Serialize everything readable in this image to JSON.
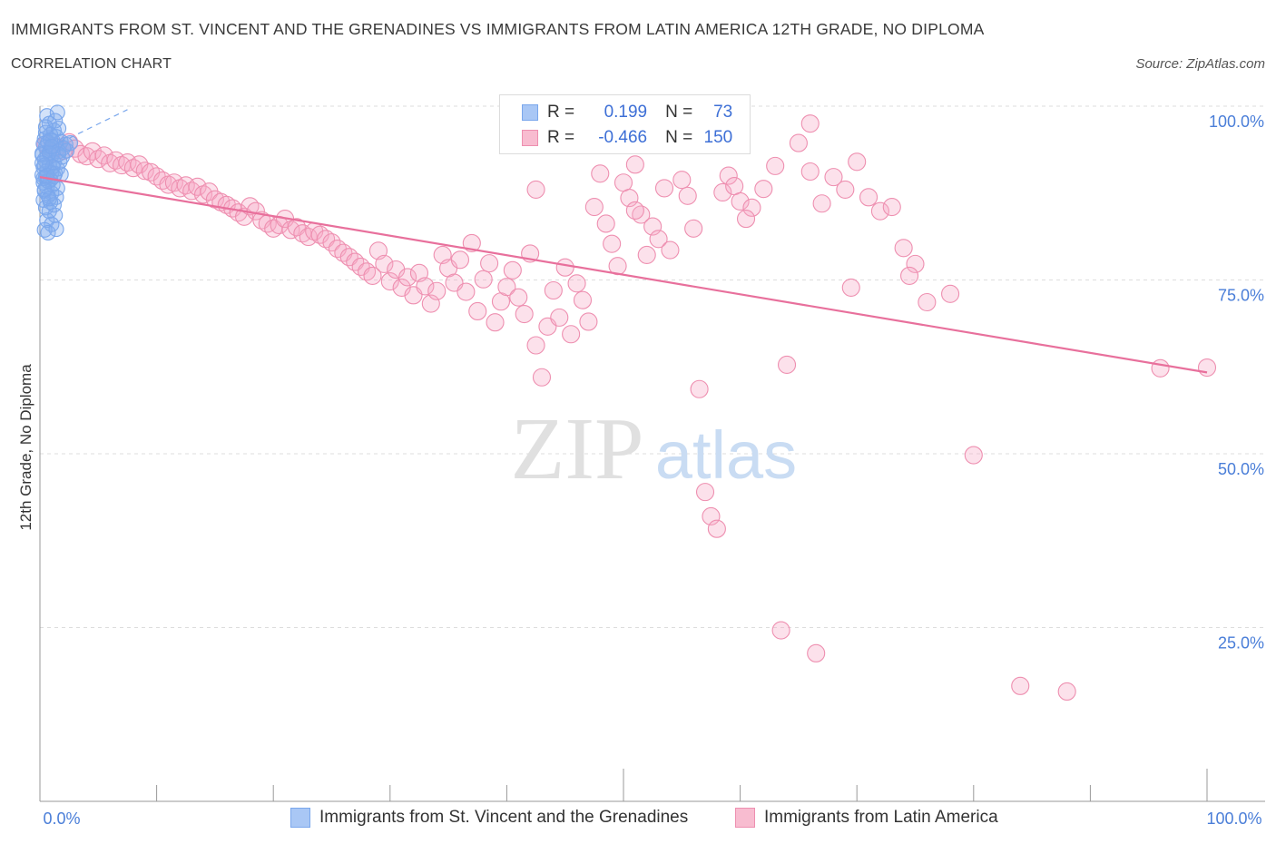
{
  "title": "IMMIGRANTS FROM ST. VINCENT AND THE GRENADINES VS IMMIGRANTS FROM LATIN AMERICA 12TH GRADE, NO DIPLOMA",
  "subtitle": "CORRELATION CHART",
  "source": "Source: ZipAtlas.com",
  "watermark": {
    "zip": "ZIP",
    "atlas": "atlas"
  },
  "legend": {
    "r_label": "R =",
    "n_label": "N =",
    "series1": {
      "r": "0.199",
      "n": "73",
      "color": "#a9c7f5",
      "border": "#7aa7ec"
    },
    "series2": {
      "r": "-0.466",
      "n": "150",
      "color": "#f8bcd0",
      "border": "#ee8fb0"
    }
  },
  "bottom_legend": {
    "series1": "Immigrants from St. Vincent and the Grenadines",
    "series2": "Immigrants from Latin America"
  },
  "chart_data": {
    "type": "scatter",
    "title": "IMMIGRANTS FROM ST. VINCENT AND THE GRENADINES VS IMMIGRANTS FROM LATIN AMERICA 12TH GRADE, NO DIPLOMA",
    "subtitle": "CORRELATION CHART",
    "xlabel": "",
    "ylabel": "12th Grade, No Diploma",
    "xlim": [
      0,
      100
    ],
    "ylim": [
      0,
      100
    ],
    "x_tick_labels": [
      "0.0%",
      "100.0%"
    ],
    "y_tick_labels": [
      "100.0%",
      "75.0%",
      "50.0%",
      "25.0%"
    ],
    "y_ticks": [
      100,
      75,
      50,
      25
    ],
    "grid": true,
    "legend_position": "top-center",
    "series": [
      {
        "name": "Immigrants from St. Vincent and the Grenadines",
        "color": "#7aa7ec",
        "r": 0.199,
        "n": 73,
        "trend": {
          "x": [
            0.2,
            7.5
          ],
          "y": [
            93.5,
            99.5
          ],
          "style": "dashed"
        },
        "points": [
          [
            0.6,
            98.6
          ],
          [
            1.5,
            99.1
          ],
          [
            0.8,
            97.5
          ],
          [
            1.2,
            96.5
          ],
          [
            1.6,
            96.8
          ],
          [
            0.5,
            96.2
          ],
          [
            0.9,
            95.9
          ],
          [
            1.4,
            95.6
          ],
          [
            0.4,
            95.3
          ],
          [
            1.1,
            95.0
          ],
          [
            0.7,
            94.8
          ],
          [
            1.8,
            94.9
          ],
          [
            0.3,
            94.6
          ],
          [
            1.3,
            94.3
          ],
          [
            2.2,
            94.5
          ],
          [
            0.5,
            94.1
          ],
          [
            0.9,
            93.8
          ],
          [
            1.6,
            93.5
          ],
          [
            0.2,
            93.2
          ],
          [
            1.0,
            92.9
          ],
          [
            0.6,
            92.6
          ],
          [
            1.9,
            92.7
          ],
          [
            0.4,
            92.3
          ],
          [
            1.2,
            91.9
          ],
          [
            0.8,
            91.6
          ],
          [
            0.3,
            91.2
          ],
          [
            1.5,
            91.0
          ],
          [
            0.6,
            90.7
          ],
          [
            1.0,
            90.4
          ],
          [
            0.2,
            90.1
          ],
          [
            1.3,
            90.3
          ],
          [
            1.8,
            90.2
          ],
          [
            0.5,
            89.8
          ],
          [
            0.9,
            89.4
          ],
          [
            0.3,
            89.0
          ],
          [
            1.1,
            88.7
          ],
          [
            0.6,
            88.4
          ],
          [
            1.5,
            88.2
          ],
          [
            0.4,
            87.8
          ],
          [
            1.0,
            87.5
          ],
          [
            0.7,
            87.1
          ],
          [
            1.4,
            86.9
          ],
          [
            0.3,
            86.5
          ],
          [
            0.9,
            86.2
          ],
          [
            1.2,
            85.8
          ],
          [
            0.5,
            85.4
          ],
          [
            0.8,
            84.9
          ],
          [
            1.3,
            84.3
          ],
          [
            0.6,
            83.6
          ],
          [
            1.0,
            83.0
          ],
          [
            0.4,
            82.2
          ],
          [
            1.4,
            82.3
          ],
          [
            0.7,
            81.8
          ],
          [
            2.0,
            94.0
          ],
          [
            2.6,
            94.7
          ],
          [
            0.2,
            93.0
          ],
          [
            0.8,
            93.3
          ],
          [
            1.7,
            92.0
          ],
          [
            0.4,
            91.5
          ],
          [
            1.1,
            91.3
          ],
          [
            0.3,
            89.6
          ],
          [
            0.7,
            89.2
          ],
          [
            1.6,
            93.1
          ],
          [
            2.3,
            93.6
          ],
          [
            0.9,
            95.2
          ],
          [
            0.5,
            97.0
          ],
          [
            1.3,
            97.9
          ],
          [
            0.2,
            91.8
          ],
          [
            1.0,
            94.2
          ],
          [
            0.6,
            90.0
          ],
          [
            1.2,
            89.9
          ],
          [
            0.4,
            88.0
          ],
          [
            0.8,
            86.7
          ]
        ]
      },
      {
        "name": "Immigrants from Latin America",
        "color": "#ee8fb0",
        "r": -0.466,
        "n": 150,
        "trend": {
          "x": [
            0.0,
            100.0
          ],
          "y": [
            89.8,
            61.7
          ],
          "style": "solid"
        },
        "points": [
          [
            0.5,
            94.5
          ],
          [
            1.0,
            93.2
          ],
          [
            1.5,
            94.1
          ],
          [
            2.0,
            93.6
          ],
          [
            2.5,
            94.8
          ],
          [
            3.0,
            93.9
          ],
          [
            3.5,
            93.1
          ],
          [
            4.0,
            92.8
          ],
          [
            4.5,
            93.5
          ],
          [
            5.0,
            92.4
          ],
          [
            5.5,
            92.9
          ],
          [
            6.0,
            91.8
          ],
          [
            6.5,
            92.2
          ],
          [
            7.0,
            91.5
          ],
          [
            7.5,
            91.9
          ],
          [
            8.0,
            91.1
          ],
          [
            8.5,
            91.6
          ],
          [
            9.0,
            90.7
          ],
          [
            9.5,
            90.5
          ],
          [
            10.0,
            89.9
          ],
          [
            10.5,
            89.3
          ],
          [
            11.0,
            88.7
          ],
          [
            11.5,
            89.0
          ],
          [
            12.0,
            88.2
          ],
          [
            12.5,
            88.6
          ],
          [
            13.0,
            87.8
          ],
          [
            13.5,
            88.4
          ],
          [
            14.0,
            87.3
          ],
          [
            14.5,
            87.7
          ],
          [
            15.0,
            86.6
          ],
          [
            15.5,
            86.2
          ],
          [
            16.0,
            85.8
          ],
          [
            16.5,
            85.3
          ],
          [
            17.0,
            84.7
          ],
          [
            17.5,
            84.1
          ],
          [
            18.0,
            85.6
          ],
          [
            18.5,
            84.9
          ],
          [
            19.0,
            83.6
          ],
          [
            19.5,
            83.1
          ],
          [
            20.0,
            82.4
          ],
          [
            20.5,
            82.9
          ],
          [
            21.0,
            83.8
          ],
          [
            21.5,
            82.2
          ],
          [
            22.0,
            82.6
          ],
          [
            22.5,
            81.7
          ],
          [
            23.0,
            81.2
          ],
          [
            23.5,
            82.0
          ],
          [
            24.0,
            81.5
          ],
          [
            24.5,
            80.9
          ],
          [
            25.0,
            80.4
          ],
          [
            25.5,
            79.5
          ],
          [
            26.0,
            78.9
          ],
          [
            26.5,
            78.3
          ],
          [
            27.0,
            77.6
          ],
          [
            27.5,
            76.9
          ],
          [
            28.0,
            76.2
          ],
          [
            28.5,
            75.6
          ],
          [
            29.0,
            79.2
          ],
          [
            29.5,
            77.3
          ],
          [
            30.0,
            74.8
          ],
          [
            30.5,
            76.5
          ],
          [
            31.0,
            73.9
          ],
          [
            31.5,
            75.4
          ],
          [
            32.0,
            72.8
          ],
          [
            32.5,
            76.0
          ],
          [
            33.0,
            74.1
          ],
          [
            33.5,
            71.6
          ],
          [
            34.0,
            73.4
          ],
          [
            34.5,
            78.6
          ],
          [
            35.0,
            76.7
          ],
          [
            35.5,
            74.6
          ],
          [
            36.0,
            77.9
          ],
          [
            36.5,
            73.3
          ],
          [
            37.0,
            80.3
          ],
          [
            37.5,
            70.5
          ],
          [
            38.0,
            75.1
          ],
          [
            38.5,
            77.4
          ],
          [
            39.0,
            68.9
          ],
          [
            39.5,
            71.9
          ],
          [
            40.0,
            74.0
          ],
          [
            40.5,
            76.4
          ],
          [
            41.0,
            72.5
          ],
          [
            41.5,
            70.1
          ],
          [
            42.0,
            78.8
          ],
          [
            42.5,
            65.6
          ],
          [
            43.0,
            61.0
          ],
          [
            43.5,
            68.3
          ],
          [
            44.0,
            73.5
          ],
          [
            44.5,
            69.6
          ],
          [
            45.0,
            76.8
          ],
          [
            45.5,
            67.2
          ],
          [
            46.0,
            74.5
          ],
          [
            46.5,
            72.1
          ],
          [
            47.0,
            69.0
          ],
          [
            47.5,
            85.5
          ],
          [
            48.0,
            90.3
          ],
          [
            48.5,
            83.1
          ],
          [
            49.0,
            80.2
          ],
          [
            49.5,
            77.0
          ],
          [
            50.0,
            89.0
          ],
          [
            50.5,
            86.8
          ],
          [
            51.0,
            91.6
          ],
          [
            51.5,
            84.4
          ],
          [
            52.0,
            78.6
          ],
          [
            52.5,
            82.7
          ],
          [
            53.0,
            80.9
          ],
          [
            53.5,
            88.2
          ],
          [
            54.0,
            79.3
          ],
          [
            54.5,
            95.5
          ],
          [
            55.0,
            89.4
          ],
          [
            55.5,
            87.1
          ],
          [
            56.0,
            82.4
          ],
          [
            56.5,
            59.3
          ],
          [
            57.0,
            44.5
          ],
          [
            57.5,
            41.0
          ],
          [
            58.0,
            39.2
          ],
          [
            58.5,
            87.6
          ],
          [
            59.0,
            90.0
          ],
          [
            59.5,
            88.5
          ],
          [
            60.0,
            86.3
          ],
          [
            61.0,
            85.4
          ],
          [
            62.0,
            88.1
          ],
          [
            63.0,
            91.4
          ],
          [
            64.0,
            62.8
          ],
          [
            65.0,
            94.7
          ],
          [
            66.0,
            90.6
          ],
          [
            67.0,
            86.0
          ],
          [
            68.0,
            89.8
          ],
          [
            69.0,
            88.0
          ],
          [
            70.0,
            92.0
          ],
          [
            71.0,
            86.9
          ],
          [
            72.0,
            84.9
          ],
          [
            73.0,
            85.5
          ],
          [
            74.0,
            79.6
          ],
          [
            75.0,
            77.3
          ],
          [
            76.0,
            71.8
          ],
          [
            78.0,
            73.0
          ],
          [
            80.0,
            49.8
          ],
          [
            63.5,
            24.6
          ],
          [
            66.5,
            21.3
          ],
          [
            84.0,
            16.6
          ],
          [
            88.0,
            15.8
          ],
          [
            96.0,
            62.3
          ],
          [
            100.0,
            62.4
          ],
          [
            69.5,
            73.9
          ],
          [
            74.5,
            75.6
          ],
          [
            60.5,
            83.8
          ],
          [
            42.5,
            88.0
          ],
          [
            66.0,
            97.5
          ],
          [
            51.0,
            85.0
          ]
        ]
      }
    ]
  }
}
